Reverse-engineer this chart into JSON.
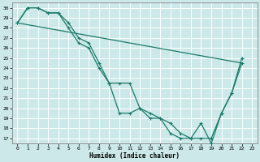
{
  "xlabel": "Humidex (Indice chaleur)",
  "xlim": [
    -0.5,
    23.5
  ],
  "ylim": [
    16.5,
    30.5
  ],
  "yticks": [
    17,
    18,
    19,
    20,
    21,
    22,
    23,
    24,
    25,
    26,
    27,
    28,
    29,
    30
  ],
  "xticks": [
    0,
    1,
    2,
    3,
    4,
    5,
    6,
    7,
    8,
    9,
    10,
    11,
    12,
    13,
    14,
    15,
    16,
    17,
    18,
    19,
    20,
    21,
    22,
    23
  ],
  "bg_color": "#cce8e8",
  "grid_color": "#ffffff",
  "line_color": "#1a7a6a",
  "line1_x": [
    0,
    1,
    2,
    3,
    4,
    5,
    6,
    7,
    8,
    9,
    10,
    11,
    12,
    13,
    14,
    15,
    16,
    17,
    18,
    19,
    20,
    21,
    22
  ],
  "line1_y": [
    28.5,
    30,
    30,
    29.5,
    29.5,
    28.5,
    27,
    26.5,
    24.5,
    22.5,
    22.5,
    22.5,
    20.0,
    19.5,
    19.0,
    18.5,
    17.5,
    17.0,
    17.0,
    17.0,
    19.5,
    21.5,
    24.5
  ],
  "line2_x": [
    0,
    1,
    2,
    3,
    4,
    5,
    6,
    7,
    8,
    9,
    10,
    11,
    12,
    13,
    14,
    15,
    16,
    17,
    18,
    19,
    20,
    21,
    22
  ],
  "line2_y": [
    28.5,
    30,
    30,
    29.5,
    29.5,
    28.0,
    26.5,
    26.0,
    24.0,
    22.5,
    19.5,
    19.5,
    20.0,
    19.0,
    19.0,
    17.5,
    17.0,
    17.0,
    18.5,
    16.5,
    19.5,
    21.5,
    25.0
  ],
  "line3_x": [
    0,
    22
  ],
  "line3_y": [
    28.5,
    24.5
  ]
}
